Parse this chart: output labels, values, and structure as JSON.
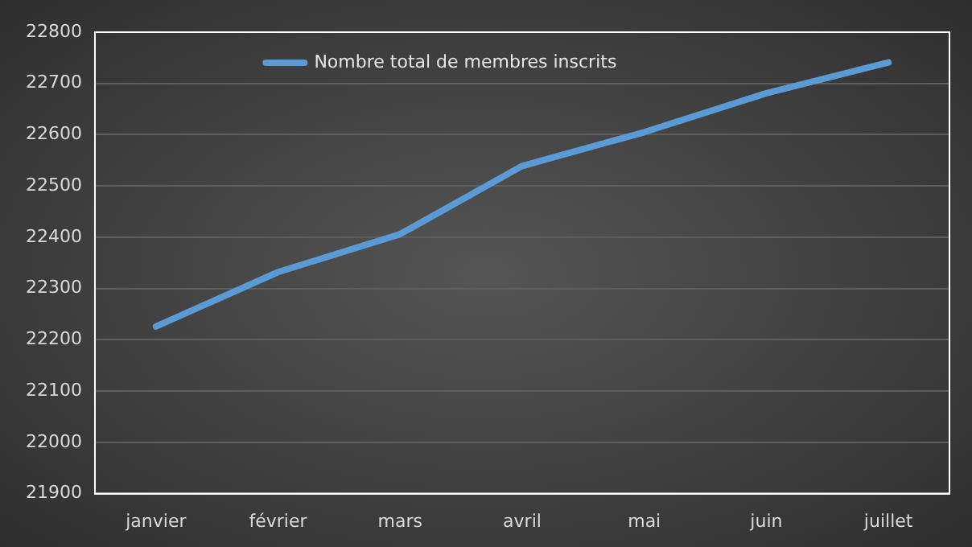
{
  "chart_data": {
    "type": "line",
    "categories": [
      "janvier",
      "février",
      "mars",
      "avril",
      "mai",
      "juin",
      "juillet"
    ],
    "series": [
      {
        "name": "Nombre total de membres inscrits",
        "color": "#5b9bd5",
        "values": [
          22226,
          22332,
          22406,
          22539,
          22605,
          22681,
          22741
        ]
      }
    ],
    "ylim": [
      21900,
      22800
    ],
    "yticks": [
      21900,
      22000,
      22100,
      22200,
      22300,
      22400,
      22500,
      22600,
      22700,
      22800
    ],
    "grid": "y",
    "legend": "top left",
    "marker": "none"
  }
}
